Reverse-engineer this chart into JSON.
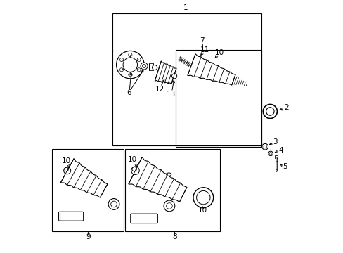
{
  "background_color": "#ffffff",
  "figure_width": 4.89,
  "figure_height": 3.6,
  "dpi": 100,
  "line_color": "#000000",
  "text_color": "#000000",
  "font_size": 7.5,
  "boxes": {
    "main": [
      0.27,
      0.43,
      0.585,
      0.52
    ],
    "sub7": [
      0.52,
      0.43,
      0.335,
      0.38
    ],
    "sub9": [
      0.03,
      0.09,
      0.285,
      0.32
    ],
    "sub8": [
      0.32,
      0.09,
      0.365,
      0.32
    ]
  }
}
